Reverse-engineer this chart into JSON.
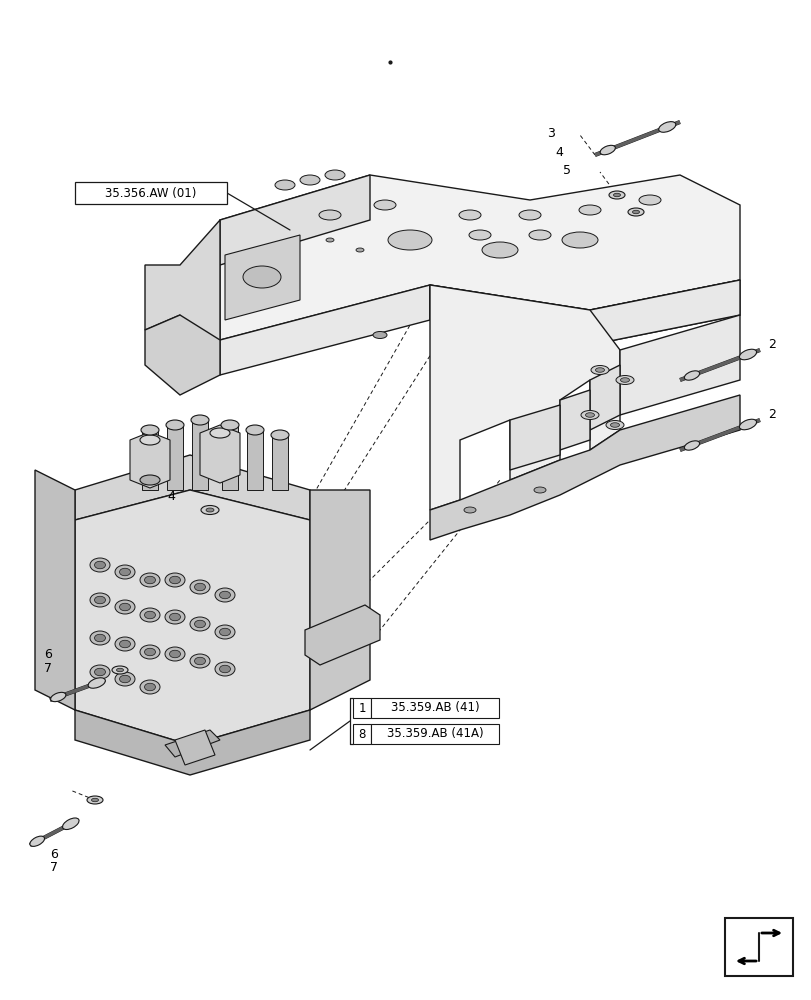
{
  "bg_color": "#ffffff",
  "line_color": "#1a1a1a",
  "figsize": [
    8.12,
    10.0
  ],
  "dpi": 100,
  "labels": {
    "ref_35356": "35.356.AW (01)",
    "ref_1_41": "35.359.AB (41)",
    "ref_8_41a": "35.359.AB (41A)",
    "num1": "1",
    "num2a": "2",
    "num2b": "2",
    "num3": "3",
    "num4a": "4",
    "num4b": "4",
    "num5": "5",
    "num6a": "6",
    "num6b": "6",
    "num7a": "7",
    "num7b": "7",
    "num8": "8"
  }
}
